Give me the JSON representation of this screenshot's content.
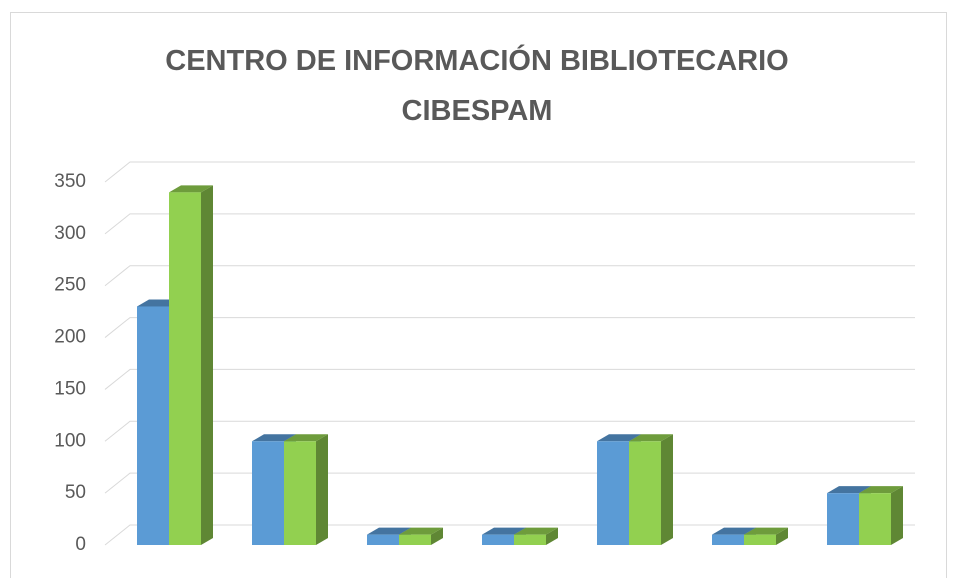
{
  "chart_data": {
    "type": "bar3d",
    "title": "CENTRO DE INFORMACIÓN BIBLIOTECARIO CIBESPAM",
    "categories": [
      null,
      null,
      null,
      null,
      null,
      null,
      null
    ],
    "series": [
      {
        "color": "#5b9bd5",
        "values": [
          230,
          100,
          10,
          10,
          100,
          10,
          50
        ]
      },
      {
        "color": "#92d050",
        "values": [
          340,
          100,
          10,
          10,
          100,
          10,
          50
        ]
      }
    ],
    "ylim": [
      0,
      350
    ],
    "yticks": [
      0,
      50,
      100,
      150,
      200,
      250,
      300,
      350
    ],
    "grid": true
  }
}
